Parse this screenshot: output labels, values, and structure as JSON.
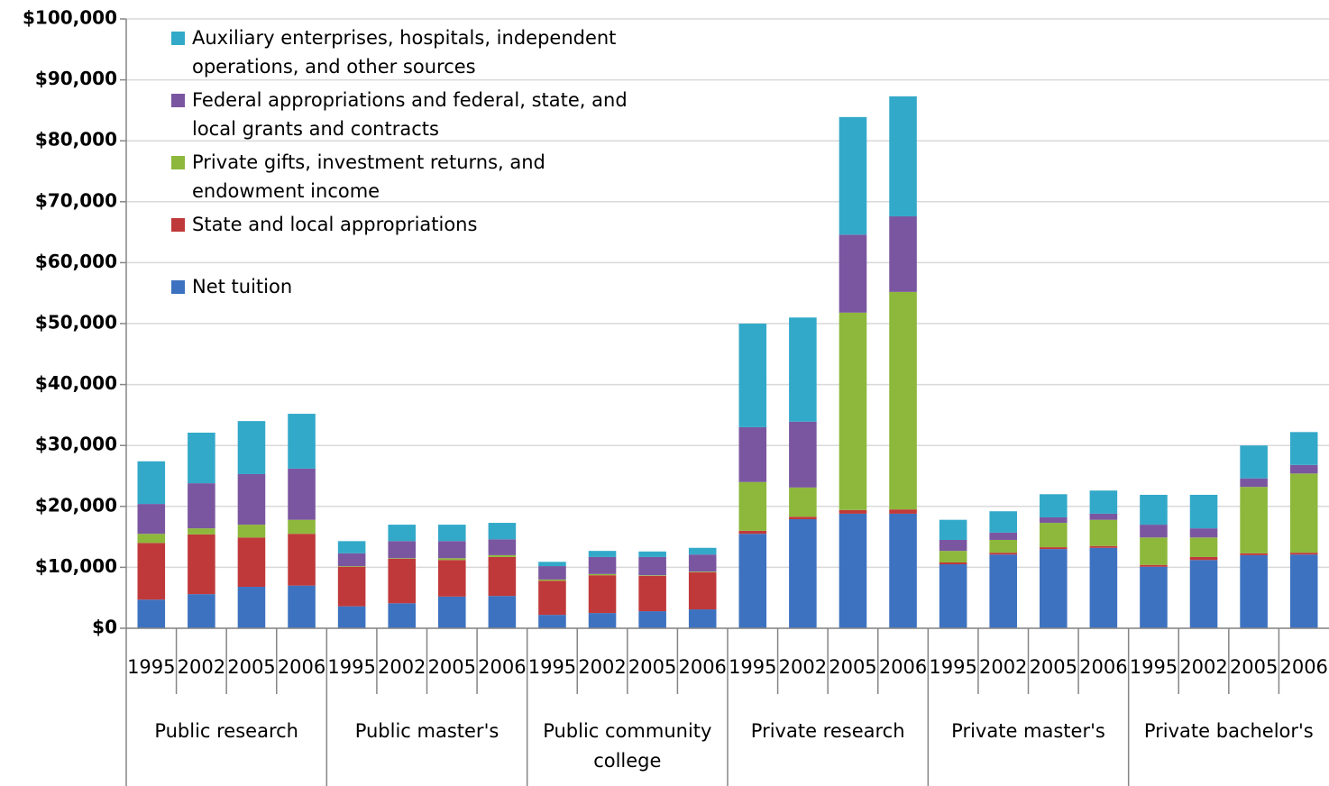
{
  "chart_data": {
    "type": "stacked_bar",
    "categories": [
      "1995",
      "2002",
      "2005",
      "2006",
      "1995",
      "2002",
      "2005",
      "2006",
      "1995",
      "2002",
      "2005",
      "2006",
      "1995",
      "2002",
      "2005",
      "2006",
      "1995",
      "2002",
      "2005",
      "2006",
      "1995",
      "2002",
      "2005",
      "2006"
    ],
    "groups": [
      "Public research",
      "Public master's",
      "Public community college",
      "Private research",
      "Private master's",
      "Private bachelor's"
    ],
    "series": [
      {
        "name": "Net tuition",
        "color": "#3d72c0",
        "values": [
          4700,
          5600,
          6800,
          7000,
          3600,
          4100,
          5200,
          5300,
          2200,
          2500,
          2800,
          3100,
          15500,
          17900,
          18800,
          18800,
          10500,
          12100,
          13000,
          13200,
          10100,
          11200,
          12000,
          12100
        ]
      },
      {
        "name": "State and local appropriations",
        "color": "#c0393a",
        "values": [
          9300,
          9800,
          8100,
          8500,
          6500,
          7300,
          6000,
          6400,
          5600,
          6200,
          5800,
          6100,
          500,
          400,
          600,
          700,
          300,
          300,
          300,
          300,
          300,
          500,
          300,
          300
        ]
      },
      {
        "name": "Private gifts, investment returns, and endowment income",
        "color": "#8db83c",
        "values": [
          1500,
          1000,
          2100,
          2300,
          100,
          100,
          300,
          300,
          200,
          200,
          100,
          100,
          8000,
          4800,
          32400,
          35700,
          1900,
          2100,
          4000,
          4300,
          4500,
          3200,
          10900,
          13000
        ]
      },
      {
        "name": "Federal appropriations and federal, state, and local grants and contracts",
        "color": "#7a56a0",
        "values": [
          4900,
          7400,
          8300,
          8400,
          2100,
          2800,
          2800,
          2600,
          2200,
          2800,
          3000,
          2800,
          9000,
          10800,
          12800,
          12400,
          1800,
          1200,
          900,
          1000,
          2100,
          1500,
          1400,
          1400
        ]
      },
      {
        "name": "Auxiliary enterprises, hospitals, independent operations, and other sources",
        "color": "#33a9c9",
        "values": [
          7000,
          8300,
          8700,
          9000,
          2000,
          2700,
          2700,
          2700,
          700,
          1000,
          900,
          1100,
          17000,
          17100,
          19300,
          19700,
          3300,
          3500,
          3800,
          3800,
          4900,
          5500,
          5400,
          5400
        ]
      }
    ],
    "ylim": [
      0,
      100000
    ],
    "yticks": [
      {
        "value": 0,
        "label": "$0"
      },
      {
        "value": 10000,
        "label": "$10,000"
      },
      {
        "value": 20000,
        "label": "$20,000"
      },
      {
        "value": 30000,
        "label": "$30,000"
      },
      {
        "value": 40000,
        "label": "$40,000"
      },
      {
        "value": 50000,
        "label": "$50,000"
      },
      {
        "value": 60000,
        "label": "$60,000"
      },
      {
        "value": 70000,
        "label": "$70,000"
      },
      {
        "value": 80000,
        "label": "$80,000"
      },
      {
        "value": 90000,
        "label": "$90,000"
      },
      {
        "value": 100000,
        "label": "$100,000"
      }
    ],
    "grid": true,
    "legend": "top-left"
  }
}
